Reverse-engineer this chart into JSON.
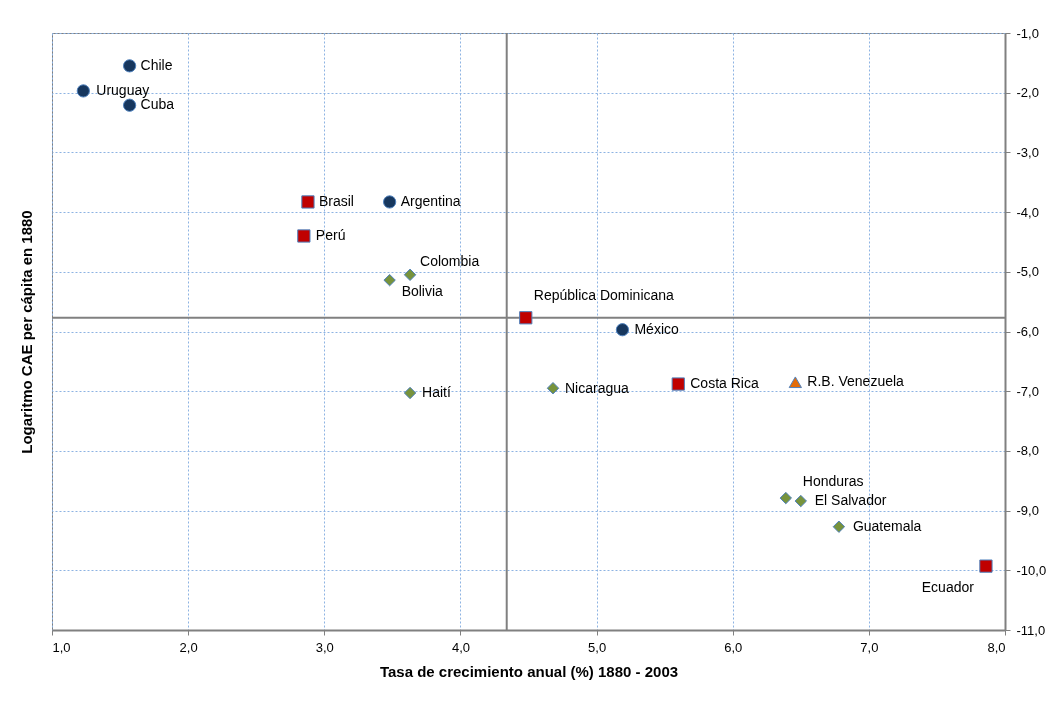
{
  "chart_data": {
    "type": "scatter",
    "xlabel": "Tasa de crecimiento anual (%) 1880 - 2003",
    "ylabel": "Logaritmo CAE per cápita en 1880",
    "series": [
      {
        "color": "#17375e",
        "marker": "circle",
        "x": [
          1.57,
          1.23,
          1.57,
          3.48,
          5.19
        ],
        "values": [
          -1.55,
          -1.97,
          -2.21,
          -3.83,
          -5.97
        ]
      },
      {
        "color": "#c00000",
        "marker": "square",
        "x": [
          2.88,
          2.85,
          4.48,
          5.6,
          7.86
        ],
        "values": [
          -3.83,
          -4.4,
          -5.77,
          -6.88,
          -9.93
        ]
      },
      {
        "color": "#77933c",
        "marker": "diamond",
        "x": [
          3.63,
          3.48,
          4.68,
          3.63,
          6.39,
          6.5,
          6.78
        ],
        "values": [
          -5.05,
          -5.14,
          -6.95,
          -7.03,
          -8.79,
          -8.84,
          -9.27
        ]
      },
      {
        "color": "#e36c09",
        "marker": "triangle",
        "x": [
          6.46
        ],
        "values": [
          -6.85
        ]
      }
    ],
    "xlim": [
      1,
      8
    ],
    "ylim": [
      -11,
      -1
    ],
    "xticks": [
      {
        "value": 1,
        "label": "1,0"
      },
      {
        "value": 2,
        "label": "2,0"
      },
      {
        "value": 3,
        "label": "3,0"
      },
      {
        "value": 4,
        "label": "4,0"
      },
      {
        "value": 5,
        "label": "5,0"
      },
      {
        "value": 6,
        "label": "6,0"
      },
      {
        "value": 7,
        "label": "7,0"
      },
      {
        "value": 8,
        "label": "8,0"
      }
    ],
    "yticks": [
      {
        "value": -1,
        "label": "-1,0"
      },
      {
        "value": -2,
        "label": "-2,0"
      },
      {
        "value": -3,
        "label": "-3,0"
      },
      {
        "value": -4,
        "label": "-4,0"
      },
      {
        "value": -5,
        "label": "-5,0"
      },
      {
        "value": -6,
        "label": "-6,0"
      },
      {
        "value": -7,
        "label": "-7,0"
      },
      {
        "value": -8,
        "label": "-8,0"
      },
      {
        "value": -9,
        "label": "-9,0"
      },
      {
        "value": -10,
        "label": "-10,0"
      },
      {
        "value": -11,
        "label": "-11,0"
      }
    ],
    "ref_lines": [
      {
        "axis": "x",
        "value": 4.34,
        "color": "#808080"
      },
      {
        "axis": "y",
        "value": -5.77,
        "color": "#808080"
      }
    ],
    "annotations": [
      {
        "text": "Chile",
        "x": 1.57,
        "y": -1.55
      },
      {
        "text": "Uruguay",
        "x": 1.23,
        "y": -1.97
      },
      {
        "text": "Cuba",
        "x": 1.57,
        "y": -2.21
      },
      {
        "text": "Brasil",
        "x": 2.88,
        "y": -3.83
      },
      {
        "text": "Argentina",
        "x": 3.48,
        "y": -3.83
      },
      {
        "text": "Perú",
        "x": 2.85,
        "y": -4.4
      },
      {
        "text": "Colombia",
        "x": 3.63,
        "y": -5.05
      },
      {
        "text": "Bolivia",
        "x": 3.48,
        "y": -5.14
      },
      {
        "text": "República Dominicana",
        "x": 4.48,
        "y": -5.77
      },
      {
        "text": "México",
        "x": 5.19,
        "y": -5.97
      },
      {
        "text": "Nicaragua",
        "x": 4.68,
        "y": -6.95
      },
      {
        "text": "Costa Rica",
        "x": 5.6,
        "y": -6.88
      },
      {
        "text": "R.B. Venezuela",
        "x": 6.46,
        "y": -6.85
      },
      {
        "text": "Haití",
        "x": 3.63,
        "y": -7.03
      },
      {
        "text": "Honduras",
        "x": 6.39,
        "y": -8.79
      },
      {
        "text": "El Salvador",
        "x": 6.5,
        "y": -8.84
      },
      {
        "text": "Guatemala",
        "x": 6.78,
        "y": -9.27
      },
      {
        "text": "Ecuador",
        "x": 7.86,
        "y": -9.93
      }
    ],
    "grid": true
  }
}
